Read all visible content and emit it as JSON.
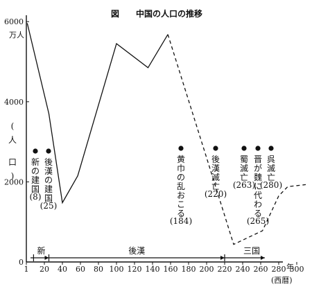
{
  "chart_data": {
    "type": "line",
    "title": "図　　中国の人口の推移",
    "xlabel": "年",
    "xlabel_sub": "(西暦)",
    "ylabel_unit": "万人",
    "ylabel_vertical": [
      "(",
      "人",
      "",
      "口",
      ")"
    ],
    "x_ticks": [
      1,
      20,
      40,
      60,
      80,
      100,
      120,
      140,
      160,
      180,
      200,
      220,
      240,
      260,
      280,
      300
    ],
    "y_ticks": [
      0,
      2000,
      4000,
      6000
    ],
    "xlim": [
      0,
      300
    ],
    "ylim": [
      0,
      6000
    ],
    "series": [
      {
        "style": "solid",
        "points": [
          [
            1,
            5960
          ],
          [
            25,
            3700
          ],
          [
            40,
            1480
          ],
          [
            57,
            2150
          ],
          [
            100,
            5450
          ],
          [
            135,
            4850
          ],
          [
            157,
            5680
          ]
        ]
      },
      {
        "style": "dashed",
        "points": [
          [
            157,
            5680
          ],
          [
            200,
            2600
          ],
          [
            230,
            440
          ],
          [
            262,
            780
          ],
          [
            280,
            1650
          ],
          [
            290,
            1880
          ],
          [
            310,
            1930
          ]
        ]
      }
    ],
    "annotations": [
      {
        "x": 8,
        "lines": [
          "新の",
          "建国",
          "(8)"
        ]
      },
      {
        "x": 25,
        "lines": [
          "後漢の",
          "建国",
          "(25)"
        ]
      },
      {
        "x": 184,
        "lines": [
          "黄巾の乱おこる",
          "(184)"
        ]
      },
      {
        "x": 220,
        "lines": [
          "後漢滅亡",
          "(220)"
        ]
      },
      {
        "x": 263,
        "lines": [
          "蜀滅亡",
          "(263)"
        ]
      },
      {
        "x": 265,
        "lines": [
          "晋が魏に代わる",
          "(265)"
        ]
      },
      {
        "x": 280,
        "lines": [
          "呉滅亡",
          "(280)"
        ]
      }
    ],
    "eras": [
      {
        "label": "新",
        "start": 8,
        "end": 25
      },
      {
        "label": "後漢",
        "start": 25,
        "end": 220
      },
      {
        "label": "三国",
        "start": 220,
        "end": 280
      }
    ]
  }
}
